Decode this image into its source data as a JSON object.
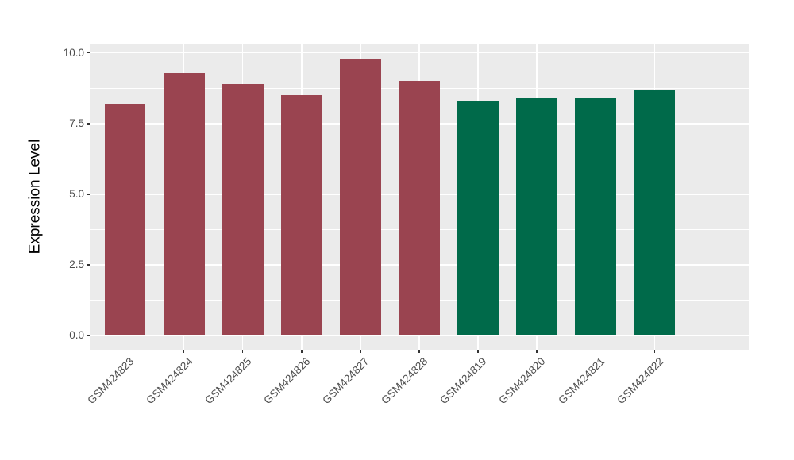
{
  "chart_data": {
    "type": "bar",
    "title": "",
    "xlabel": "",
    "ylabel": "Expression Level",
    "categories": [
      "GSM424823",
      "GSM424824",
      "GSM424825",
      "GSM424826",
      "GSM424827",
      "GSM424828",
      "GSM424819",
      "GSM424820",
      "GSM424821",
      "GSM424822"
    ],
    "values": [
      8.2,
      9.3,
      8.9,
      8.5,
      9.8,
      9.0,
      8.3,
      8.4,
      8.4,
      8.7
    ],
    "bar_colors": [
      "#9A4450",
      "#9A4450",
      "#9A4450",
      "#9A4450",
      "#9A4450",
      "#9A4450",
      "#006A4A",
      "#006A4A",
      "#006A4A",
      "#006A4A"
    ],
    "yticks": [
      {
        "value": 0,
        "label": "0.0"
      },
      {
        "value": 2.5,
        "label": "2.5"
      },
      {
        "value": 5,
        "label": "5.0"
      },
      {
        "value": 7.5,
        "label": "7.5"
      },
      {
        "value": 10,
        "label": "10.0"
      }
    ],
    "minor_gridlines": [
      1.25,
      3.75,
      6.25,
      8.75
    ],
    "ylim": [
      -0.5,
      10.3
    ],
    "grid": true,
    "legend_position": "none",
    "bar_width_fraction": 0.7,
    "colors": {
      "panel_bg": "#EBEBEB",
      "grid": "#FFFFFF",
      "tick_mark": "#333333",
      "tick_label": "#4D4D4D",
      "axis_title": "#000000",
      "figure_bg": "#FFFFFF"
    }
  }
}
